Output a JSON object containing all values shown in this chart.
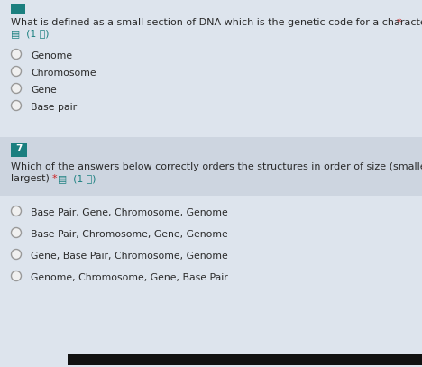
{
  "background_color": "#dde4ed",
  "q1_bg_color": "#dde4ed",
  "q2_header_bg": "#cdd5e0",
  "section_header_bg": "#1b7f7f",
  "section_header_text": "7",
  "section_header_text_color": "#ffffff",
  "teal_icon_color": "#1b7f7f",
  "q1_title": "What is defined as a small section of DNA which is the genetic code for a characteristic?",
  "q1_points_icon": "▤  (1 点)",
  "q1_options": [
    "Genome",
    "Chromosome",
    "Gene",
    "Base pair"
  ],
  "q2_title_line1": "Which of the answers below correctly orders the structures in order of size (smallest to",
  "q2_title_line2": "largest)",
  "q2_points_icon": "▤  (1 点)",
  "q2_options": [
    "Base Pair, Gene, Chromosome, Genome",
    "Base Pair, Chromosome, Gene, Genome",
    "Gene, Base Pair, Chromosome, Genome",
    "Genome, Chromosome, Gene, Base Pair"
  ],
  "teal_color": "#1b8080",
  "red_color": "#cc2222",
  "text_dark": "#2a2a2a",
  "text_medium": "#444444",
  "radio_edge": "#999999",
  "radio_face": "#f0f0f0",
  "black_bar_color": "#111111",
  "fig_width": 4.68,
  "fig_height": 4.07,
  "dpi": 100
}
